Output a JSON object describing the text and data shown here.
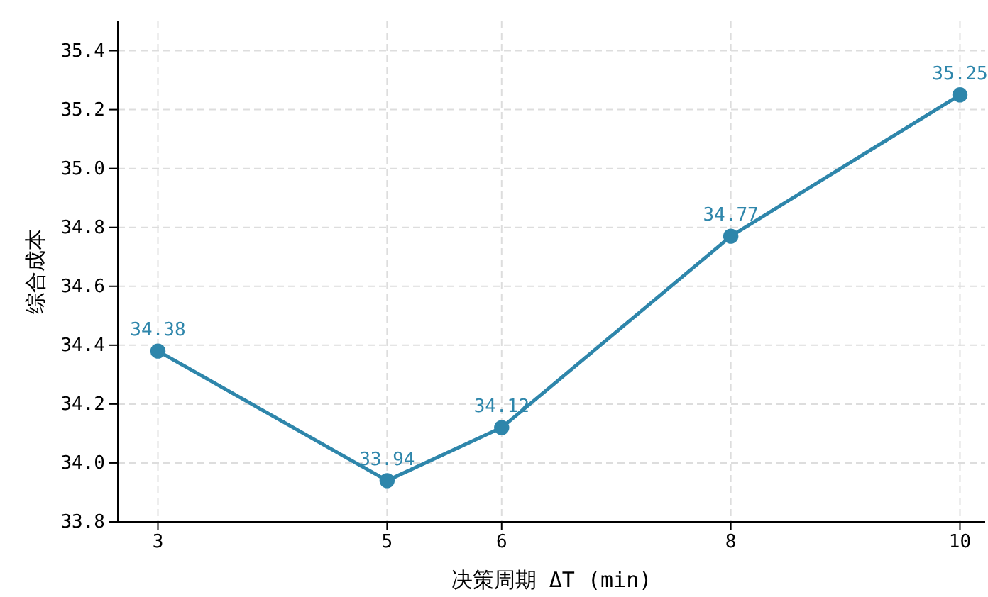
{
  "chart_data": {
    "type": "line",
    "xlabel": "决策周期 ΔT (min)",
    "ylabel": "综合成本",
    "x": [
      3,
      5,
      6,
      8,
      10
    ],
    "series": [
      {
        "color": "#2e86ab",
        "values": [
          34.38,
          33.94,
          34.12,
          34.77,
          35.25
        ]
      }
    ],
    "xlim": [
      2.65,
      10.22
    ],
    "xticks": [
      3,
      5,
      6,
      8,
      10
    ],
    "ylim": [
      33.8,
      35.5
    ],
    "yticks": [
      {
        "value": 33.8,
        "label": "33.8"
      },
      {
        "value": 34.0,
        "label": "34.0"
      },
      {
        "value": 34.2,
        "label": "34.2"
      },
      {
        "value": 34.4,
        "label": "34.4"
      },
      {
        "value": 34.6,
        "label": "34.6"
      },
      {
        "value": 34.8,
        "label": "34.8"
      },
      {
        "value": 35.0,
        "label": "35.0"
      },
      {
        "value": 35.2,
        "label": "35.2"
      },
      {
        "value": 35.4,
        "label": "35.4"
      }
    ],
    "grid": true,
    "marker": "circle",
    "line_style": "solid",
    "data_labels": true
  }
}
